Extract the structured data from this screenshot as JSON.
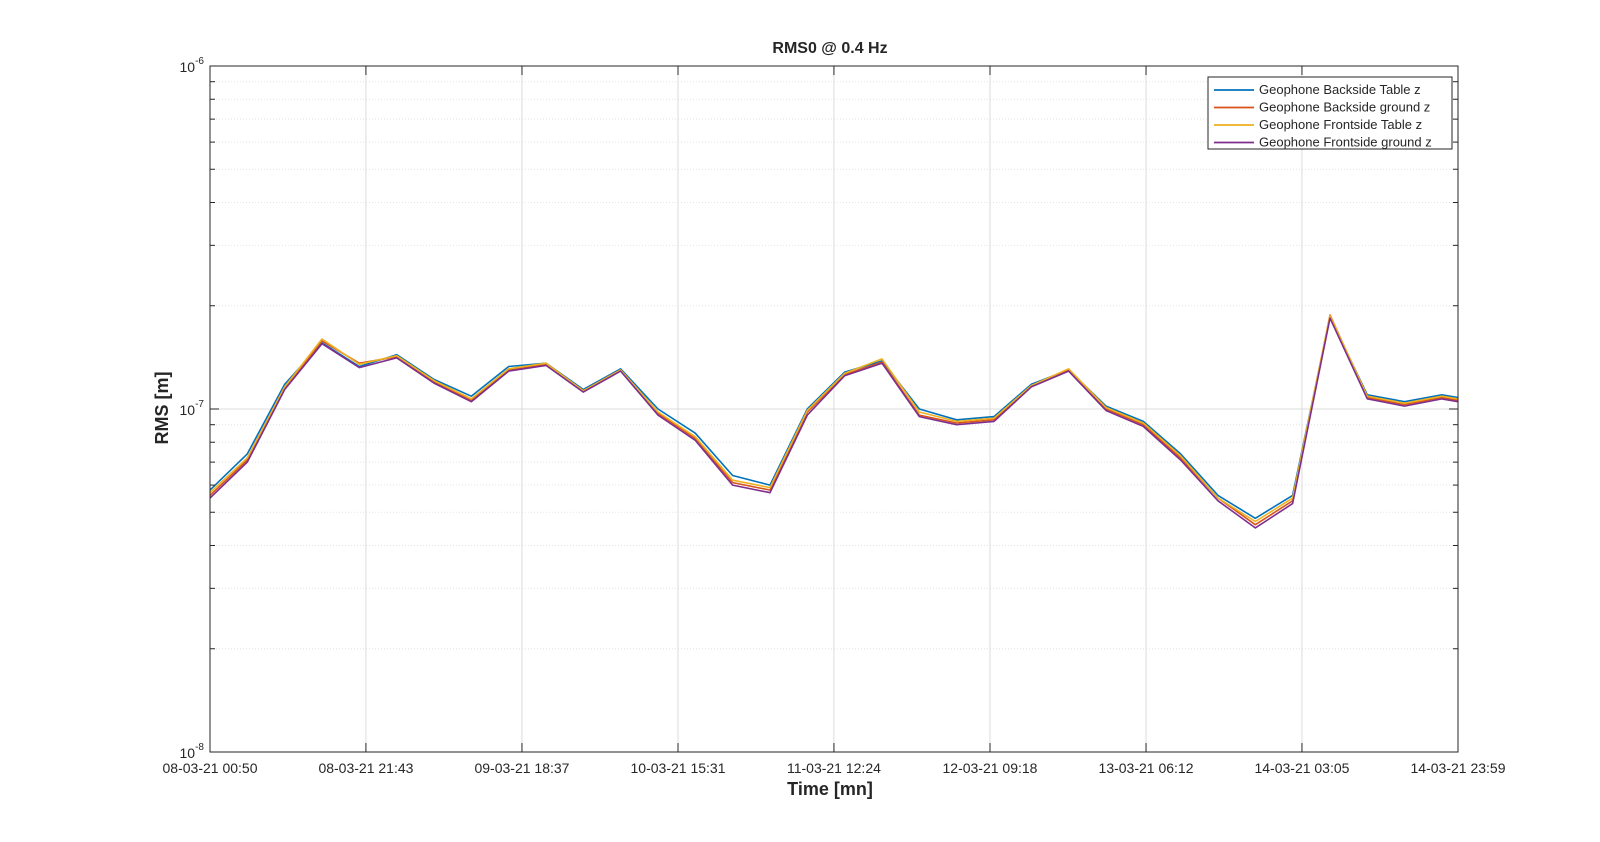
{
  "chart_data": {
    "type": "line",
    "title": "RMS0 @ 0.4 Hz",
    "xlabel": "Time [mn]",
    "ylabel": "RMS [m]",
    "yscale": "log",
    "ylim": [
      1e-08,
      1e-06
    ],
    "y_ticks": [
      {
        "base": "10",
        "exp": "-8",
        "value": 1e-08
      },
      {
        "base": "10",
        "exp": "-7",
        "value": 1e-07
      },
      {
        "base": "10",
        "exp": "-6",
        "value": 1e-06
      }
    ],
    "x_ticks": [
      "08-03-21 00:50",
      "08-03-21 21:43",
      "09-03-21 18:37",
      "10-03-21 15:31",
      "11-03-21 12:24",
      "12-03-21 09:18",
      "13-03-21 06:12",
      "14-03-21 03:05",
      "14-03-21 23:59"
    ],
    "xlim": [
      "08-03-21 00:50",
      "14-03-21 23:59"
    ],
    "grid": true,
    "legend_position": "top-right",
    "x": [
      "08-03-21 00:50",
      "08-03-21 05:50",
      "08-03-21 10:50",
      "08-03-21 15:50",
      "08-03-21 20:50",
      "09-03-21 01:50",
      "09-03-21 06:50",
      "09-03-21 11:50",
      "09-03-21 16:50",
      "09-03-21 21:50",
      "10-03-21 02:50",
      "10-03-21 07:50",
      "10-03-21 12:50",
      "10-03-21 17:50",
      "10-03-21 22:50",
      "11-03-21 03:50",
      "11-03-21 08:50",
      "11-03-21 13:50",
      "11-03-21 18:50",
      "11-03-21 23:50",
      "12-03-21 04:50",
      "12-03-21 09:50",
      "12-03-21 14:50",
      "12-03-21 19:50",
      "13-03-21 00:50",
      "13-03-21 05:50",
      "13-03-21 10:50",
      "13-03-21 15:50",
      "13-03-21 20:50",
      "14-03-21 01:50",
      "14-03-21 06:50",
      "14-03-21 11:50",
      "14-03-21 16:50",
      "14-03-21 21:50",
      "14-03-21 23:59"
    ],
    "series": [
      {
        "name": "Geophone Backside Table z",
        "color": "#0072BD",
        "values": [
          5.8e-08,
          7.4e-08,
          1.18e-07,
          1.56e-07,
          1.33e-07,
          1.44e-07,
          1.22e-07,
          1.09e-07,
          1.33e-07,
          1.36e-07,
          1.14e-07,
          1.31e-07,
          1e-07,
          8.5e-08,
          6.4e-08,
          6e-08,
          1e-07,
          1.28e-07,
          1.38e-07,
          1e-07,
          9.3e-08,
          9.5e-08,
          1.18e-07,
          1.3e-07,
          1.02e-07,
          9.2e-08,
          7.4e-08,
          5.6e-08,
          4.8e-08,
          5.6e-08,
          1.85e-07,
          1.1e-07,
          1.05e-07,
          1.1e-07,
          1.08e-07
        ]
      },
      {
        "name": "Geophone Backside ground z",
        "color": "#D95319",
        "values": [
          5.6e-08,
          7.1e-08,
          1.15e-07,
          1.58e-07,
          1.36e-07,
          1.42e-07,
          1.2e-07,
          1.06e-07,
          1.3e-07,
          1.35e-07,
          1.13e-07,
          1.3e-07,
          9.7e-08,
          8.2e-08,
          6.1e-08,
          5.8e-08,
          9.8e-08,
          1.26e-07,
          1.37e-07,
          9.6e-08,
          9.1e-08,
          9.3e-08,
          1.17e-07,
          1.3e-07,
          1e-07,
          9e-08,
          7.2e-08,
          5.5e-08,
          4.6e-08,
          5.4e-08,
          1.88e-07,
          1.08e-07,
          1.03e-07,
          1.08e-07,
          1.06e-07
        ]
      },
      {
        "name": "Geophone Frontside Table z",
        "color": "#EDB120",
        "values": [
          5.7e-08,
          7.2e-08,
          1.16e-07,
          1.6e-07,
          1.35e-07,
          1.43e-07,
          1.21e-07,
          1.07e-07,
          1.31e-07,
          1.36e-07,
          1.13e-07,
          1.3e-07,
          9.8e-08,
          8.3e-08,
          6.2e-08,
          5.9e-08,
          9.9e-08,
          1.27e-07,
          1.4e-07,
          9.8e-08,
          9.2e-08,
          9.4e-08,
          1.17e-07,
          1.31e-07,
          1.01e-07,
          9.1e-08,
          7.3e-08,
          5.5e-08,
          4.7e-08,
          5.5e-08,
          1.87e-07,
          1.09e-07,
          1.04e-07,
          1.09e-07,
          1.07e-07
        ]
      },
      {
        "name": "Geophone Frontside ground z",
        "color": "#7E2F8E",
        "values": [
          5.5e-08,
          7e-08,
          1.14e-07,
          1.55e-07,
          1.32e-07,
          1.41e-07,
          1.19e-07,
          1.05e-07,
          1.29e-07,
          1.34e-07,
          1.12e-07,
          1.29e-07,
          9.6e-08,
          8.1e-08,
          6e-08,
          5.7e-08,
          9.6e-08,
          1.25e-07,
          1.36e-07,
          9.5e-08,
          9e-08,
          9.2e-08,
          1.16e-07,
          1.29e-07,
          9.9e-08,
          8.9e-08,
          7.1e-08,
          5.4e-08,
          4.5e-08,
          5.3e-08,
          1.84e-07,
          1.07e-07,
          1.02e-07,
          1.07e-07,
          1.05e-07
        ]
      }
    ]
  }
}
